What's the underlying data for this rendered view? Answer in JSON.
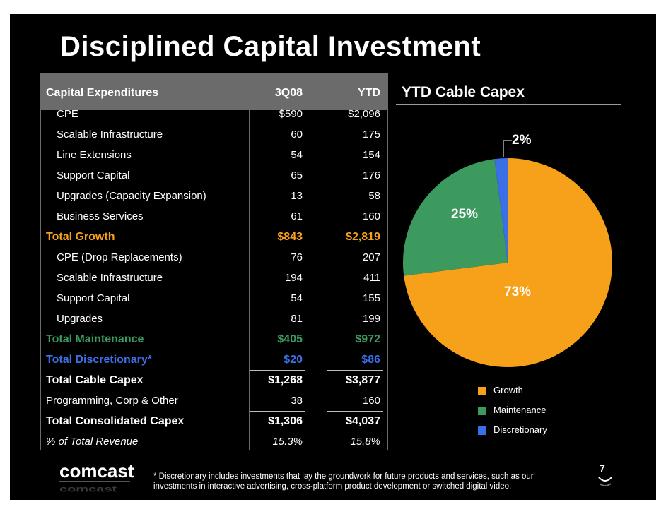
{
  "slide": {
    "title": "Disciplined Capital Investment",
    "footnote": "* Discretionary includes investments that lay the groundwork for future products and services, such as our investments in interactive advertising, cross-platform product development or switched digital video.",
    "page_number": "7",
    "logo_text": "comcast",
    "colors": {
      "background": "#000000",
      "growth": "#f7a11a",
      "maintenance": "#3c9a5f",
      "discretionary": "#3a6fe6",
      "header_band": "#6b6b6b"
    }
  },
  "table": {
    "columns": [
      "Capital Expenditures",
      "3Q08",
      "YTD"
    ],
    "rows": [
      {
        "label": "CPE",
        "q": "$590",
        "ytd": "$2,096",
        "style": "indent"
      },
      {
        "label": "Scalable Infrastructure",
        "q": "60",
        "ytd": "175",
        "style": "indent"
      },
      {
        "label": "Line Extensions",
        "q": "54",
        "ytd": "154",
        "style": "indent"
      },
      {
        "label": "Support Capital",
        "q": "65",
        "ytd": "176",
        "style": "indent"
      },
      {
        "label": "Upgrades (Capacity Expansion)",
        "q": "13",
        "ytd": "58",
        "style": "indent"
      },
      {
        "label": "Business Services",
        "q": "61",
        "ytd": "160",
        "style": "indent"
      },
      {
        "label": "Total Growth",
        "q": "$843",
        "ytd": "$2,819",
        "style": "total-growth"
      },
      {
        "label": "CPE (Drop Replacements)",
        "q": "76",
        "ytd": "207",
        "style": "indent"
      },
      {
        "label": "Scalable Infrastructure",
        "q": "194",
        "ytd": "411",
        "style": "indent"
      },
      {
        "label": "Support Capital",
        "q": "54",
        "ytd": "155",
        "style": "indent"
      },
      {
        "label": "Upgrades",
        "q": "81",
        "ytd": "199",
        "style": "indent"
      },
      {
        "label": "Total Maintenance",
        "q": "$405",
        "ytd": "$972",
        "style": "total-maintenance"
      },
      {
        "label": "Total Discretionary*",
        "q": "$20",
        "ytd": "$86",
        "style": "total-discretionary"
      },
      {
        "label": "Total Cable Capex",
        "q": "$1,268",
        "ytd": "$3,877",
        "style": "total"
      },
      {
        "label": "Programming, Corp & Other",
        "q": "38",
        "ytd": "160",
        "style": "plain"
      },
      {
        "label": "Total Consolidated Capex",
        "q": "$1,306",
        "ytd": "$4,037",
        "style": "total"
      },
      {
        "label": "% of Total Revenue",
        "q": "15.3%",
        "ytd": "15.8%",
        "style": "italic"
      }
    ]
  },
  "chart_data": {
    "type": "pie",
    "title": "YTD Cable Capex",
    "categories": [
      "Growth",
      "Maintenance",
      "Discretionary"
    ],
    "values": [
      73,
      25,
      2
    ],
    "labels": [
      "73%",
      "25%",
      "2%"
    ],
    "colors": [
      "#f7a11a",
      "#3c9a5f",
      "#3a6fe6"
    ],
    "legend": [
      "Growth",
      "Maintenance",
      "Discretionary"
    ],
    "legend_position": "bottom-right"
  }
}
